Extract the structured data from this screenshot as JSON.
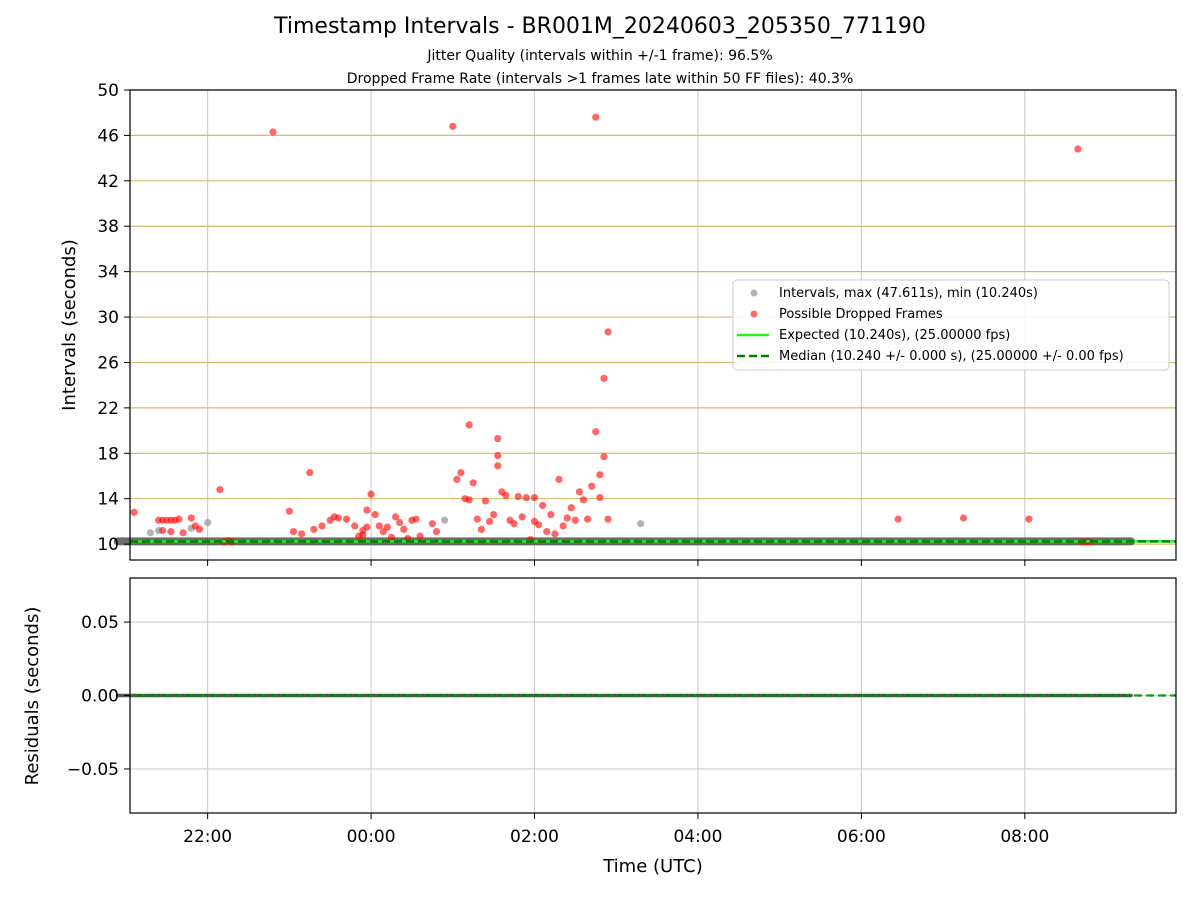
{
  "figure": {
    "title": "Timestamp Intervals - BR001M_20240603_205350_771190",
    "subtitle_jitter": "Jitter Quality (intervals within +/-1 frame): 96.5%",
    "subtitle_dropped": "Dropped Frame Rate (intervals >1 frames late within 50 FF files): 40.3%"
  },
  "colors": {
    "intervals": "#999999",
    "dropped": "#ff0000",
    "expected": "#22ee22",
    "median": "#008000",
    "y_grid": "#d4bd6a",
    "grid": "#cccccc"
  },
  "chart_data": [
    {
      "type": "scatter",
      "id": "intervals",
      "xlabel": "",
      "ylabel": "Intervals (seconds)",
      "x_unit": "hours since 00:00 UTC",
      "xlim": [
        -2.95,
        9.85
      ],
      "ylim": [
        8.6,
        50
      ],
      "x_ticks": [
        -2,
        0,
        2,
        4,
        6,
        8
      ],
      "x_tick_labels_shown": false,
      "y_ticks": [
        10,
        14,
        18,
        22,
        26,
        30,
        34,
        38,
        42,
        46,
        50
      ],
      "y_tick_labels": [
        "10",
        "14",
        "18",
        "22",
        "26",
        "30",
        "34",
        "38",
        "42",
        "46",
        "50"
      ],
      "grid": true,
      "legend_position": "center-right",
      "legend": [
        {
          "label": "Intervals, max (47.611s), min (10.240s)",
          "kind": "point",
          "color": "#999999"
        },
        {
          "label": "Possible Dropped Frames",
          "kind": "point",
          "color": "#ff0000"
        },
        {
          "label": "Expected (10.240s), (25.00000 fps)",
          "kind": "line",
          "color": "#22ee22"
        },
        {
          "label": "Median (10.240 +/- 0.000 s), (25.00000 +/- 0.00 fps)",
          "kind": "dashed",
          "color": "#008000"
        }
      ],
      "interval_baseline": {
        "x_start": -3.1,
        "x_end": 9.3,
        "y": 10.24
      },
      "expected_line": {
        "y": 10.24
      },
      "median_line": {
        "y": 10.24
      },
      "series": [
        {
          "name": "Intervals, max (47.611s), min (10.240s)",
          "points": [
            [
              -2.7,
              11.0
            ],
            [
              -2.0,
              11.9
            ],
            [
              0.9,
              12.1
            ],
            [
              3.3,
              11.8
            ],
            [
              -2.6,
              11.2
            ],
            [
              -2.2,
              11.4
            ]
          ]
        },
        {
          "name": "Possible Dropped Frames",
          "points": [
            [
              -2.9,
              12.8
            ],
            [
              -2.6,
              12.1
            ],
            [
              -2.55,
              12.1
            ],
            [
              -2.5,
              12.1
            ],
            [
              -2.45,
              12.1
            ],
            [
              -2.4,
              12.1
            ],
            [
              -2.55,
              11.2
            ],
            [
              -2.45,
              11.1
            ],
            [
              -2.35,
              12.2
            ],
            [
              -2.3,
              11.0
            ],
            [
              -2.2,
              12.3
            ],
            [
              -2.15,
              11.6
            ],
            [
              -2.1,
              11.3
            ],
            [
              -1.85,
              14.8
            ],
            [
              -1.8,
              10.2
            ],
            [
              -1.75,
              10.3
            ],
            [
              -1.7,
              10.2
            ],
            [
              -1.2,
              46.3
            ],
            [
              -1.0,
              12.9
            ],
            [
              -0.95,
              11.1
            ],
            [
              -0.85,
              10.9
            ],
            [
              -0.75,
              16.3
            ],
            [
              -0.7,
              11.3
            ],
            [
              -0.6,
              11.6
            ],
            [
              -0.5,
              12.1
            ],
            [
              -0.45,
              12.4
            ],
            [
              -0.4,
              12.3
            ],
            [
              -0.3,
              12.2
            ],
            [
              -0.2,
              11.6
            ],
            [
              -0.15,
              10.7
            ],
            [
              -0.1,
              11.2
            ],
            [
              -0.05,
              13.0
            ],
            [
              0.0,
              14.4
            ],
            [
              -0.1,
              10.8
            ],
            [
              -0.05,
              11.5
            ],
            [
              0.05,
              12.6
            ],
            [
              0.1,
              11.6
            ],
            [
              0.15,
              11.1
            ],
            [
              0.2,
              11.5
            ],
            [
              0.25,
              10.6
            ],
            [
              0.3,
              12.4
            ],
            [
              0.35,
              11.9
            ],
            [
              0.4,
              11.3
            ],
            [
              0.45,
              10.5
            ],
            [
              0.5,
              12.1
            ],
            [
              0.55,
              12.2
            ],
            [
              0.6,
              10.7
            ],
            [
              0.75,
              11.8
            ],
            [
              0.8,
              11.1
            ],
            [
              1.0,
              46.8
            ],
            [
              1.05,
              15.7
            ],
            [
              1.1,
              16.3
            ],
            [
              1.15,
              14.0
            ],
            [
              1.2,
              20.5
            ],
            [
              1.2,
              13.9
            ],
            [
              1.25,
              15.4
            ],
            [
              1.3,
              12.2
            ],
            [
              1.35,
              11.3
            ],
            [
              1.4,
              13.8
            ],
            [
              1.45,
              12.0
            ],
            [
              1.5,
              12.6
            ],
            [
              1.55,
              19.3
            ],
            [
              1.55,
              17.8
            ],
            [
              1.55,
              16.9
            ],
            [
              1.6,
              14.6
            ],
            [
              1.65,
              14.3
            ],
            [
              1.7,
              12.1
            ],
            [
              1.75,
              11.8
            ],
            [
              1.8,
              14.2
            ],
            [
              1.85,
              12.4
            ],
            [
              1.9,
              14.1
            ],
            [
              1.95,
              10.4
            ],
            [
              2.0,
              14.1
            ],
            [
              2.0,
              12.0
            ],
            [
              2.05,
              11.7
            ],
            [
              2.1,
              13.4
            ],
            [
              2.15,
              11.1
            ],
            [
              2.2,
              12.6
            ],
            [
              2.25,
              10.9
            ],
            [
              2.3,
              15.7
            ],
            [
              2.35,
              11.6
            ],
            [
              2.4,
              12.3
            ],
            [
              2.45,
              13.2
            ],
            [
              2.5,
              12.1
            ],
            [
              2.55,
              14.6
            ],
            [
              2.6,
              13.9
            ],
            [
              2.65,
              12.2
            ],
            [
              2.7,
              15.1
            ],
            [
              2.75,
              47.6
            ],
            [
              2.75,
              19.9
            ],
            [
              2.8,
              16.1
            ],
            [
              2.8,
              14.1
            ],
            [
              2.85,
              17.7
            ],
            [
              2.85,
              24.6
            ],
            [
              2.9,
              28.7
            ],
            [
              2.9,
              12.2
            ],
            [
              6.45,
              12.2
            ],
            [
              7.25,
              12.3
            ],
            [
              8.05,
              12.2
            ],
            [
              8.65,
              44.8
            ],
            [
              8.7,
              10.2
            ],
            [
              8.75,
              10.2
            ],
            [
              8.8,
              10.2
            ]
          ]
        }
      ]
    },
    {
      "type": "scatter",
      "id": "residuals",
      "xlabel": "Time (UTC)",
      "ylabel": "Residuals (seconds)",
      "x_unit": "hours since 00:00 UTC",
      "xlim": [
        -2.95,
        9.85
      ],
      "ylim": [
        -0.08,
        0.08
      ],
      "x_ticks": [
        -2,
        0,
        2,
        4,
        6,
        8
      ],
      "x_tick_labels": [
        "22:00",
        "00:00",
        "02:00",
        "04:00",
        "06:00",
        "08:00"
      ],
      "y_ticks": [
        0.05,
        0.0,
        -0.05
      ],
      "y_tick_labels": [
        "0.05",
        "0.00",
        "−0.05"
      ],
      "grid": true,
      "residual_line": {
        "x_start": -3.1,
        "x_end": 9.3,
        "y": 0.0
      },
      "expected_line": {
        "y": 0.0
      }
    }
  ]
}
